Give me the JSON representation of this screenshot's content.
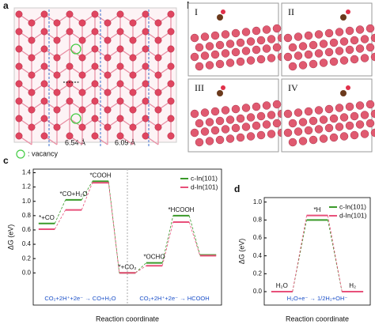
{
  "panel_a": {
    "label": "a",
    "dist_1": "6.54 Å",
    "dist_2": "6.09 Å",
    "legend": ": vacancy"
  },
  "panel_b": {
    "label": "b",
    "states": [
      "I",
      "II",
      "III",
      "IV"
    ]
  },
  "chart_data": [
    {
      "type": "energy_profile",
      "label": "c",
      "y_label": "ΔG (eV)",
      "x_label": "Reaction coordinate",
      "categories": [
        "*+CO",
        "*CO+H₂O",
        "*COOH",
        "*+CO₂",
        "*OCHO",
        "*HCOOH",
        null
      ],
      "series": [
        {
          "name": "c-In(101)",
          "color": "#3a9a2a",
          "values": [
            0.69,
            1.02,
            1.28,
            0,
            0.14,
            0.8,
            0.25
          ]
        },
        {
          "name": "d-In(101)",
          "color": "#e8507a",
          "values": [
            0.61,
            0.88,
            1.26,
            0,
            0.1,
            0.71,
            0.24
          ]
        }
      ],
      "ylim": [
        -0.45,
        1.45
      ],
      "yticks": [
        {
          "value": 0,
          "label": "0.0"
        },
        0.2,
        0.4,
        0.6,
        0.8,
        {
          "value": 1,
          "label": "1.0"
        },
        1.2,
        1.4
      ],
      "annotations": [
        "CO₂+2H⁺+2e⁻ → CO+H₂O",
        "CO₂+2H⁺+2e⁻ → HCOOH"
      ],
      "legend": "upper right"
    },
    {
      "type": "energy_profile",
      "label": "d",
      "y_label": "ΔG (eV)",
      "x_label": "Reaction coordinate",
      "categories": [
        "H₂O",
        "*H",
        "H₂"
      ],
      "series": [
        {
          "name": "c-In(101)",
          "color": "#3a9a2a",
          "values": [
            0,
            0.8,
            0
          ]
        },
        {
          "name": "d-In(101)",
          "color": "#e8507a",
          "values": [
            0,
            0.85,
            0
          ]
        }
      ],
      "ylim": [
        -0.15,
        1.05
      ],
      "yticks": [
        {
          "value": 0,
          "label": "0.0"
        },
        0.2,
        0.4,
        0.6,
        0.8,
        {
          "value": 1,
          "label": "1.0"
        }
      ],
      "annotations": [
        "H₂O+e⁻ → 1/2H₂+OH⁻"
      ],
      "legend": "upper right"
    }
  ]
}
